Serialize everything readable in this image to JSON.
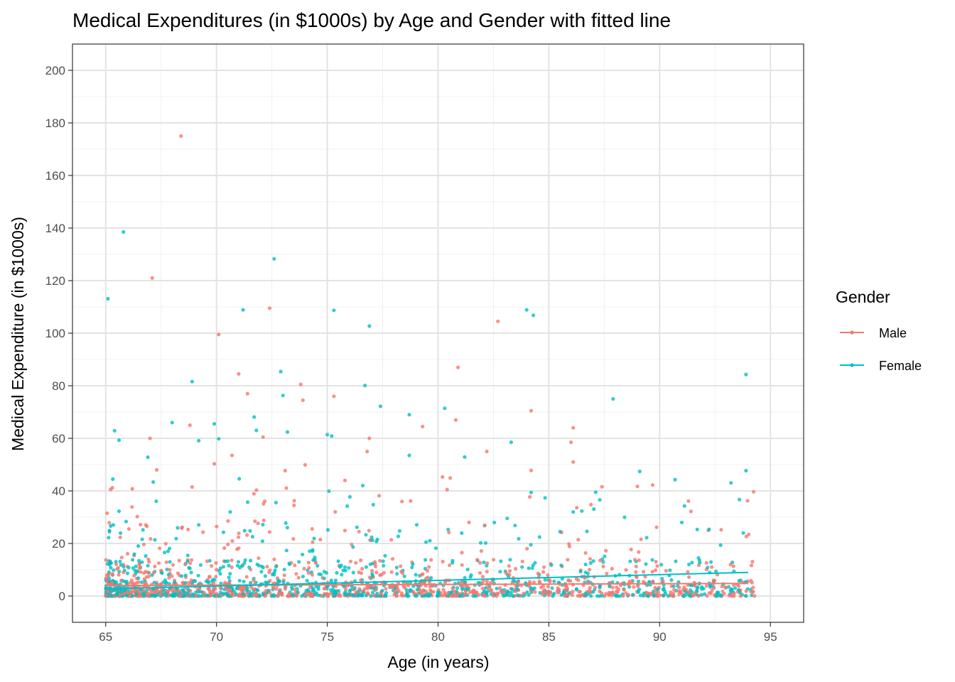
{
  "chart_data": {
    "type": "scatter",
    "title": "Medical Expenditures (in $1000s) by Age and Gender with fitted line",
    "xlabel": "Age (in years)",
    "ylabel": "Medical Expenditure (in $1000s)",
    "xlim": [
      63.5,
      96.5
    ],
    "ylim": [
      -10,
      210
    ],
    "xticks": [
      65,
      70,
      75,
      80,
      85,
      90,
      95
    ],
    "yticks": [
      0,
      20,
      40,
      60,
      80,
      100,
      120,
      140,
      160,
      180,
      200
    ],
    "xtick_labels": [
      "65",
      "70",
      "75",
      "80",
      "85",
      "90",
      "95"
    ],
    "ytick_labels": [
      "0",
      "20",
      "40",
      "60",
      "80",
      "100",
      "120",
      "140",
      "160",
      "180",
      "200"
    ],
    "grid": true,
    "legend": {
      "title": "Gender",
      "position": "right",
      "entries": [
        "Male",
        "Female"
      ]
    },
    "series": [
      {
        "name": "Male",
        "color": "#F8766D",
        "notable_points": [
          [
            68.4,
            175
          ],
          [
            67.1,
            121
          ],
          [
            72.4,
            109.5
          ],
          [
            70.1,
            99.5
          ],
          [
            82.7,
            104.5
          ],
          [
            80.9,
            87
          ],
          [
            71.0,
            84.5
          ],
          [
            73.8,
            80.5
          ],
          [
            71.4,
            77
          ],
          [
            75.3,
            76
          ],
          [
            73.9,
            74.5
          ],
          [
            84.2,
            70.5
          ],
          [
            80.8,
            67
          ],
          [
            68.8,
            65
          ],
          [
            79.3,
            64.5
          ],
          [
            86.1,
            64
          ],
          [
            67.0,
            60
          ],
          [
            76.9,
            60
          ],
          [
            86.0,
            58.5
          ],
          [
            72.1,
            60.5
          ],
          [
            82.2,
            55
          ],
          [
            76.8,
            55
          ],
          [
            70.7,
            53.5
          ],
          [
            86.1,
            51
          ],
          [
            69.9,
            50.3
          ],
          [
            73.1,
            47.7
          ],
          [
            84.2,
            47.8
          ],
          [
            80.2,
            45.3
          ],
          [
            74.0,
            49.9
          ],
          [
            67.3,
            48
          ],
          [
            66.2,
            40.8
          ],
          [
            68.9,
            41.5
          ],
          [
            87.4,
            41.6
          ],
          [
            89.0,
            41.7
          ],
          [
            91.3,
            36.1
          ],
          [
            65.3,
            41.2
          ],
          [
            75.8,
            44
          ],
          [
            73.5,
            34.5
          ],
          [
            92.2,
            25
          ],
          [
            93.2,
            12
          ]
        ],
        "fit_line": [
          [
            65,
            4.0
          ],
          [
            94,
            4.8
          ]
        ]
      },
      {
        "name": "Female",
        "color": "#00BFC4",
        "notable_points": [
          [
            65.8,
            138.5
          ],
          [
            72.6,
            128.3
          ],
          [
            65.1,
            113.1
          ],
          [
            71.2,
            108.9
          ],
          [
            75.3,
            108.7
          ],
          [
            84.0,
            108.9
          ],
          [
            84.3,
            106.8
          ],
          [
            76.9,
            102.7
          ],
          [
            72.9,
            85.4
          ],
          [
            93.9,
            84.3
          ],
          [
            68.9,
            81.6
          ],
          [
            76.7,
            80.1
          ],
          [
            73.0,
            76.3
          ],
          [
            87.9,
            75
          ],
          [
            77.4,
            72.2
          ],
          [
            80.3,
            71.4
          ],
          [
            78.7,
            69
          ],
          [
            71.7,
            68.1
          ],
          [
            68.0,
            66
          ],
          [
            69.9,
            65.5
          ],
          [
            73.2,
            62.4
          ],
          [
            65.4,
            62.9
          ],
          [
            71.8,
            63
          ],
          [
            75.0,
            61.4
          ],
          [
            75.2,
            60.9
          ],
          [
            65.6,
            59.3
          ],
          [
            70.1,
            59.8
          ],
          [
            83.3,
            58.5
          ],
          [
            69.2,
            59.1
          ],
          [
            78.7,
            53.5
          ],
          [
            81.2,
            52.9
          ],
          [
            66.9,
            52.8
          ],
          [
            86.1,
            32
          ],
          [
            89.1,
            47.4
          ],
          [
            90.7,
            44.3
          ],
          [
            93.9,
            47.7
          ],
          [
            93.6,
            36.7
          ],
          [
            91.0,
            28
          ],
          [
            84.2,
            39.4
          ],
          [
            87.3,
            36.6
          ]
        ],
        "fit_line": [
          [
            65,
            2.7
          ],
          [
            94,
            9.0
          ]
        ]
      }
    ]
  }
}
